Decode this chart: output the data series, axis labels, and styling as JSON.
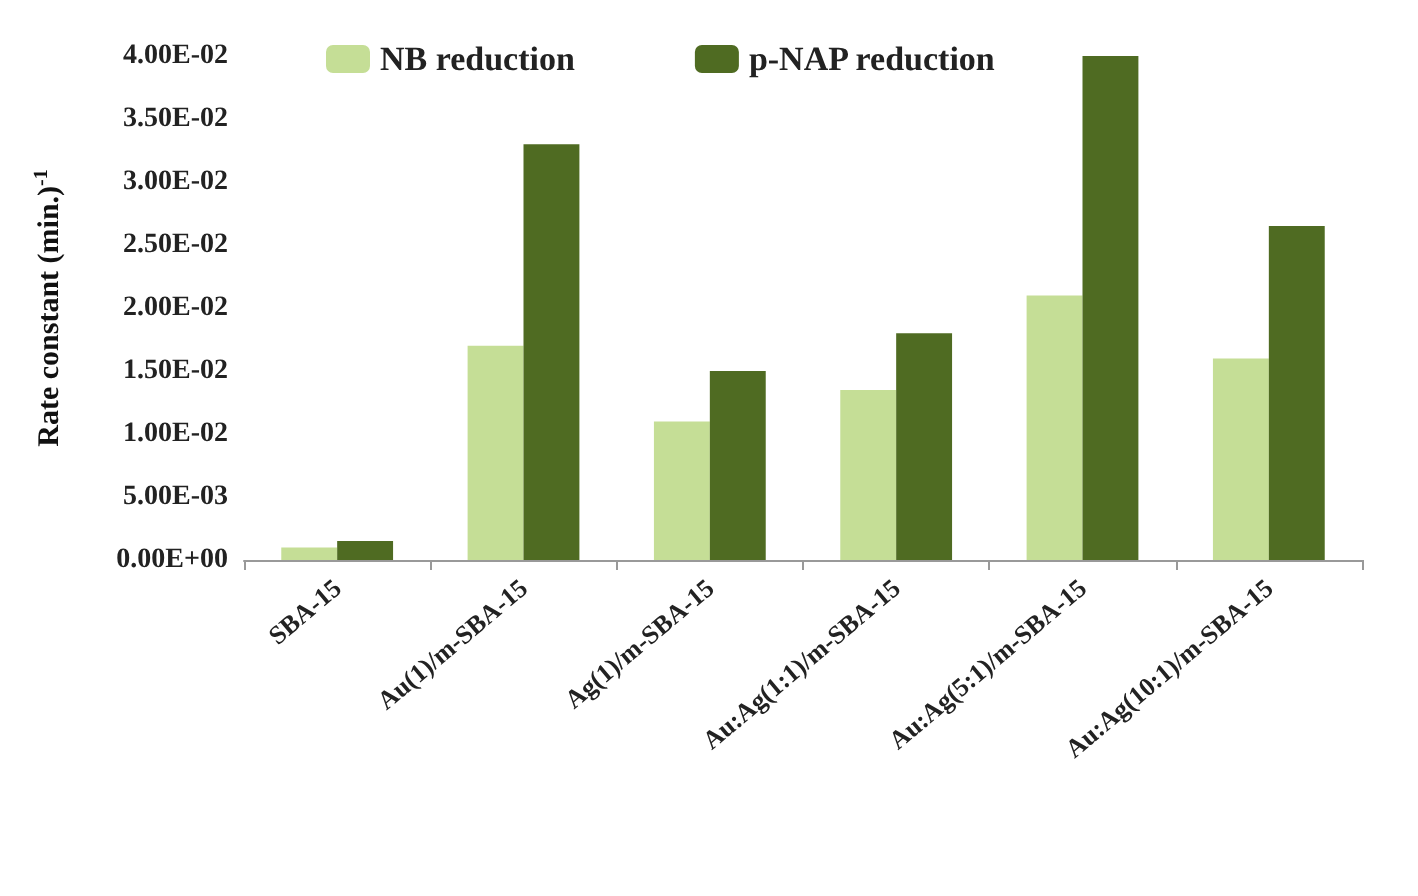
{
  "chart_data": {
    "type": "bar",
    "ylabel": "Rate constant (min.)$^{-1}$",
    "categories": [
      "SBA-15",
      "Au(1)/m-SBA-15",
      "Ag(1)/m-SBA-15",
      "Au:Ag(1:1)/m-SBA-15",
      "Au:Ag(5:1)/m-SBA-15",
      "Au:Ag(10:1)/m-SBA-15"
    ],
    "series": [
      {
        "name": "NB reduction",
        "color": "#c5de96",
        "values": [
          0.001,
          0.017,
          0.011,
          0.0135,
          0.021,
          0.016
        ]
      },
      {
        "name": "p-NAP reduction",
        "color": "#4f6b22",
        "values": [
          0.0015,
          0.033,
          0.015,
          0.018,
          0.04,
          0.0265
        ]
      }
    ],
    "ylim": [
      0,
      0.04
    ],
    "yticks": [
      {
        "value": 0,
        "label": "0.00E+00"
      },
      {
        "value": 0.005,
        "label": "5.00E-03"
      },
      {
        "value": 0.01,
        "label": "1.00E-02"
      },
      {
        "value": 0.015,
        "label": "1.50E-02"
      },
      {
        "value": 0.02,
        "label": "2.00E-02"
      },
      {
        "value": 0.025,
        "label": "2.50E-02"
      },
      {
        "value": 0.03,
        "label": "3.00E-02"
      },
      {
        "value": 0.035,
        "label": "3.50E-02"
      },
      {
        "value": 0.04,
        "label": "4.00E-02"
      }
    ],
    "legend": "top",
    "grid": false
  }
}
